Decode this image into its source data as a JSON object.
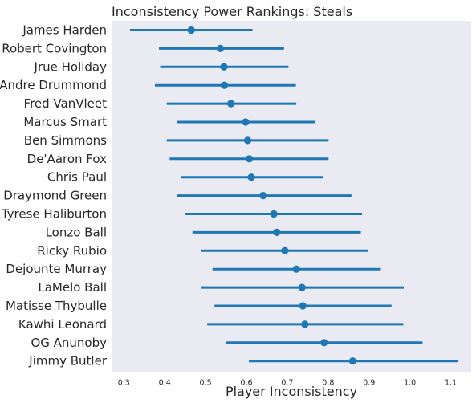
{
  "chart_data": {
    "type": "pointplot",
    "title": "Inconsistency Power Rankings: Steals",
    "xlabel": "Player Inconsistency",
    "ylabel": "",
    "xlim": [
      0.27,
      1.15
    ],
    "xticks": [
      0.3,
      0.4,
      0.5,
      0.6,
      0.7,
      0.8,
      0.9,
      1.0,
      1.1
    ],
    "xtick_labels": [
      "0.3",
      "0.4",
      "0.5",
      "0.6",
      "0.7",
      "0.8",
      "0.9",
      "1.0",
      "1.1"
    ],
    "grid": false,
    "series_color": "#1f77b4",
    "background": "#eaeaf2",
    "players": [
      {
        "name": "James Harden",
        "value": 0.465,
        "ci_low": 0.315,
        "ci_high": 0.615
      },
      {
        "name": "Robert Covington",
        "value": 0.536,
        "ci_low": 0.386,
        "ci_high": 0.692
      },
      {
        "name": "Jrue Holiday",
        "value": 0.545,
        "ci_low": 0.389,
        "ci_high": 0.703
      },
      {
        "name": "Andre Drummond",
        "value": 0.546,
        "ci_low": 0.376,
        "ci_high": 0.721
      },
      {
        "name": "Fred VanVleet",
        "value": 0.562,
        "ci_low": 0.405,
        "ci_high": 0.722
      },
      {
        "name": "Marcus Smart",
        "value": 0.598,
        "ci_low": 0.43,
        "ci_high": 0.769
      },
      {
        "name": "Ben Simmons",
        "value": 0.603,
        "ci_low": 0.405,
        "ci_high": 0.801
      },
      {
        "name": "De'Aaron Fox",
        "value": 0.607,
        "ci_low": 0.412,
        "ci_high": 0.801
      },
      {
        "name": "Chris Paul",
        "value": 0.612,
        "ci_low": 0.44,
        "ci_high": 0.787
      },
      {
        "name": "Draymond Green",
        "value": 0.641,
        "ci_low": 0.43,
        "ci_high": 0.857
      },
      {
        "name": "Tyrese Haliburton",
        "value": 0.667,
        "ci_low": 0.45,
        "ci_high": 0.883
      },
      {
        "name": "Lonzo Ball",
        "value": 0.674,
        "ci_low": 0.468,
        "ci_high": 0.88
      },
      {
        "name": "Ricky Rubio",
        "value": 0.694,
        "ci_low": 0.49,
        "ci_high": 0.898
      },
      {
        "name": "Dejounte Murray",
        "value": 0.722,
        "ci_low": 0.517,
        "ci_high": 0.929
      },
      {
        "name": "LaMelo Ball",
        "value": 0.736,
        "ci_low": 0.49,
        "ci_high": 0.985
      },
      {
        "name": "Matisse Thybulle",
        "value": 0.738,
        "ci_low": 0.522,
        "ci_high": 0.955
      },
      {
        "name": "Kawhi Leonard",
        "value": 0.743,
        "ci_low": 0.504,
        "ci_high": 0.984
      },
      {
        "name": "OG Anunoby",
        "value": 0.79,
        "ci_low": 0.55,
        "ci_high": 1.031
      },
      {
        "name": "Jimmy Butler",
        "value": 0.86,
        "ci_low": 0.606,
        "ci_high": 1.117
      }
    ]
  }
}
